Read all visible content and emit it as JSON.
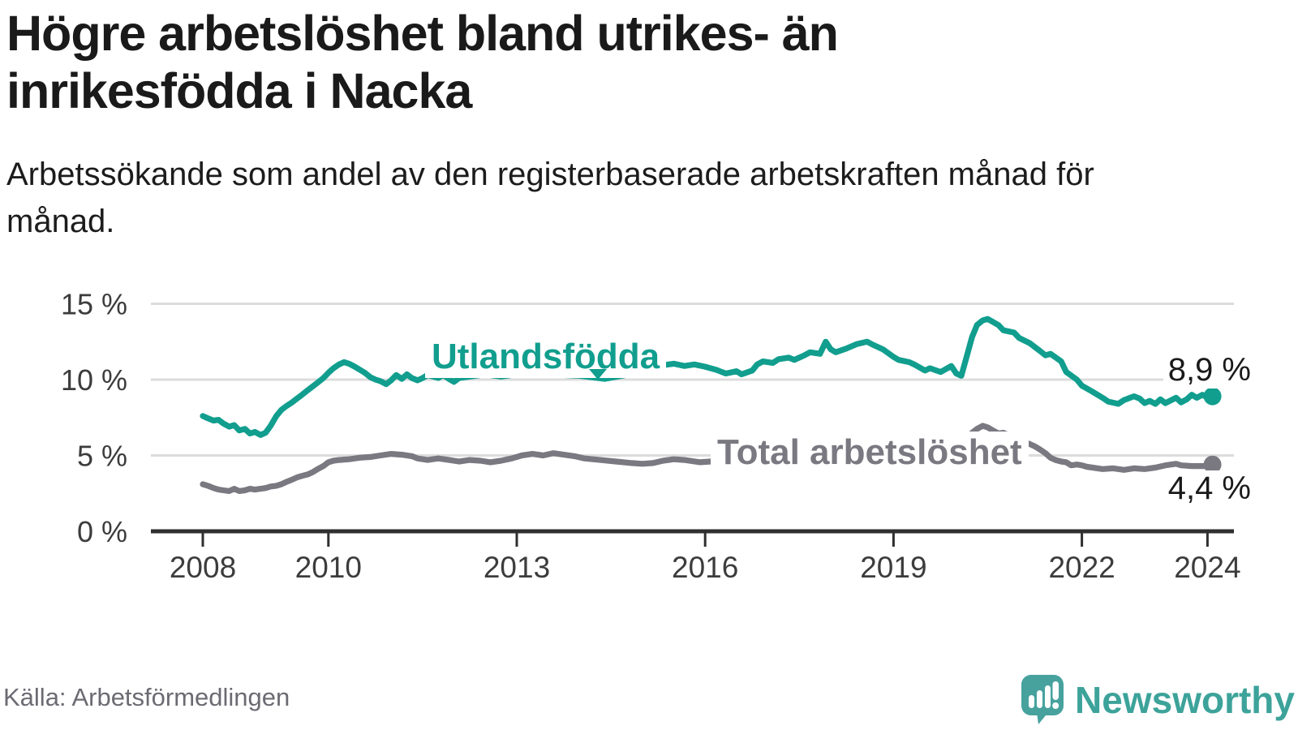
{
  "header": {
    "title": "Högre arbetslöshet bland utrikes- än inrikesfödda i Nacka",
    "subtitle": "Arbetssökande som andel av den registerbaserade arbetskraften månad för månad."
  },
  "chart_data": {
    "type": "line",
    "unit": "percent",
    "grid": "horizontal",
    "x_axis": {
      "ticks": [
        2008,
        2010,
        2013,
        2016,
        2019,
        2022,
        2024
      ],
      "range": [
        2007.2,
        2024.6
      ]
    },
    "y_axis": {
      "ticks": [
        0,
        5,
        10,
        15
      ],
      "tick_labels": [
        "0 %",
        "5 %",
        "10 %",
        "15 %"
      ],
      "range": [
        0,
        16.8
      ]
    },
    "colors": {
      "accent_teal": "#119e8e",
      "neutral_gray": "#7a7880",
      "grid": "#dcdcdc",
      "axis": "#2f2f2f",
      "annotation": "#1a1a1a"
    },
    "series": [
      {
        "name": "Utlandsfödda",
        "label": "Utlandsfödda",
        "color": "#119e8e",
        "end_label": "8,9 %",
        "end_value": 8.9,
        "points": [
          [
            2008.0,
            7.6
          ],
          [
            2008.08,
            7.45
          ],
          [
            2008.17,
            7.3
          ],
          [
            2008.25,
            7.35
          ],
          [
            2008.33,
            7.1
          ],
          [
            2008.42,
            6.9
          ],
          [
            2008.5,
            7.0
          ],
          [
            2008.58,
            6.65
          ],
          [
            2008.67,
            6.75
          ],
          [
            2008.75,
            6.45
          ],
          [
            2008.83,
            6.55
          ],
          [
            2008.92,
            6.35
          ],
          [
            2009.0,
            6.5
          ],
          [
            2009.08,
            6.95
          ],
          [
            2009.17,
            7.6
          ],
          [
            2009.25,
            8.0
          ],
          [
            2009.33,
            8.25
          ],
          [
            2009.42,
            8.5
          ],
          [
            2009.5,
            8.75
          ],
          [
            2009.58,
            9.0
          ],
          [
            2009.67,
            9.3
          ],
          [
            2009.75,
            9.55
          ],
          [
            2009.83,
            9.8
          ],
          [
            2009.92,
            10.1
          ],
          [
            2010.0,
            10.45
          ],
          [
            2010.08,
            10.75
          ],
          [
            2010.17,
            11.0
          ],
          [
            2010.25,
            11.15
          ],
          [
            2010.33,
            11.05
          ],
          [
            2010.42,
            10.85
          ],
          [
            2010.5,
            10.65
          ],
          [
            2010.58,
            10.45
          ],
          [
            2010.67,
            10.15
          ],
          [
            2010.75,
            10.0
          ],
          [
            2010.83,
            9.9
          ],
          [
            2010.92,
            9.7
          ],
          [
            2011.0,
            9.95
          ],
          [
            2011.08,
            10.3
          ],
          [
            2011.17,
            10.05
          ],
          [
            2011.25,
            10.35
          ],
          [
            2011.33,
            10.1
          ],
          [
            2011.42,
            9.95
          ],
          [
            2011.5,
            10.1
          ],
          [
            2011.58,
            10.3
          ],
          [
            2011.67,
            10.2
          ],
          [
            2011.75,
            10.1
          ],
          [
            2011.83,
            10.3
          ],
          [
            2011.92,
            10.05
          ],
          [
            2012.0,
            9.85
          ],
          [
            2012.08,
            10.1
          ],
          [
            2012.25,
            10.2
          ],
          [
            2012.5,
            10.35
          ],
          [
            2012.75,
            10.2
          ],
          [
            2013.0,
            10.35
          ],
          [
            2013.25,
            10.45
          ],
          [
            2013.5,
            10.35
          ],
          [
            2013.75,
            10.3
          ],
          [
            2014.0,
            10.25
          ],
          [
            2014.2,
            10.15
          ],
          [
            2014.4,
            10.05
          ],
          [
            2014.6,
            10.2
          ],
          [
            2014.8,
            10.35
          ],
          [
            2015.0,
            10.6
          ],
          [
            2015.17,
            10.8
          ],
          [
            2015.33,
            10.95
          ],
          [
            2015.5,
            11.05
          ],
          [
            2015.67,
            10.9
          ],
          [
            2015.83,
            11.0
          ],
          [
            2016.0,
            10.85
          ],
          [
            2016.17,
            10.65
          ],
          [
            2016.33,
            10.4
          ],
          [
            2016.5,
            10.55
          ],
          [
            2016.58,
            10.35
          ],
          [
            2016.75,
            10.6
          ],
          [
            2016.83,
            11.0
          ],
          [
            2016.92,
            11.2
          ],
          [
            2017.08,
            11.1
          ],
          [
            2017.17,
            11.35
          ],
          [
            2017.33,
            11.45
          ],
          [
            2017.42,
            11.3
          ],
          [
            2017.58,
            11.6
          ],
          [
            2017.67,
            11.8
          ],
          [
            2017.83,
            11.7
          ],
          [
            2017.92,
            12.5
          ],
          [
            2018.0,
            12.0
          ],
          [
            2018.08,
            11.8
          ],
          [
            2018.25,
            12.05
          ],
          [
            2018.42,
            12.35
          ],
          [
            2018.58,
            12.5
          ],
          [
            2018.67,
            12.3
          ],
          [
            2018.83,
            12.0
          ],
          [
            2019.0,
            11.5
          ],
          [
            2019.08,
            11.3
          ],
          [
            2019.25,
            11.15
          ],
          [
            2019.33,
            11.0
          ],
          [
            2019.5,
            10.6
          ],
          [
            2019.58,
            10.75
          ],
          [
            2019.75,
            10.5
          ],
          [
            2019.92,
            10.9
          ],
          [
            2020.0,
            10.4
          ],
          [
            2020.08,
            10.25
          ],
          [
            2020.17,
            11.6
          ],
          [
            2020.25,
            12.8
          ],
          [
            2020.33,
            13.6
          ],
          [
            2020.42,
            13.9
          ],
          [
            2020.5,
            14.0
          ],
          [
            2020.67,
            13.6
          ],
          [
            2020.75,
            13.25
          ],
          [
            2020.92,
            13.1
          ],
          [
            2021.0,
            12.75
          ],
          [
            2021.17,
            12.4
          ],
          [
            2021.33,
            11.9
          ],
          [
            2021.42,
            11.6
          ],
          [
            2021.5,
            11.7
          ],
          [
            2021.67,
            11.2
          ],
          [
            2021.75,
            10.5
          ],
          [
            2021.92,
            10.0
          ],
          [
            2022.0,
            9.6
          ],
          [
            2022.17,
            9.2
          ],
          [
            2022.33,
            8.8
          ],
          [
            2022.42,
            8.55
          ],
          [
            2022.58,
            8.4
          ],
          [
            2022.67,
            8.65
          ],
          [
            2022.83,
            8.9
          ],
          [
            2022.92,
            8.75
          ],
          [
            2023.0,
            8.45
          ],
          [
            2023.08,
            8.6
          ],
          [
            2023.17,
            8.4
          ],
          [
            2023.25,
            8.7
          ],
          [
            2023.33,
            8.45
          ],
          [
            2023.5,
            8.8
          ],
          [
            2023.58,
            8.5
          ],
          [
            2023.67,
            8.7
          ],
          [
            2023.75,
            9.0
          ],
          [
            2023.83,
            8.8
          ],
          [
            2023.92,
            9.0
          ],
          [
            2024.0,
            8.8
          ],
          [
            2024.08,
            8.9
          ]
        ]
      },
      {
        "name": "Total arbetslöshet",
        "label": "Total arbetslöshet",
        "color": "#7a7880",
        "end_label": "4,4 %",
        "end_value": 4.4,
        "points": [
          [
            2008.0,
            3.1
          ],
          [
            2008.08,
            3.0
          ],
          [
            2008.17,
            2.85
          ],
          [
            2008.25,
            2.75
          ],
          [
            2008.33,
            2.7
          ],
          [
            2008.42,
            2.65
          ],
          [
            2008.5,
            2.8
          ],
          [
            2008.58,
            2.65
          ],
          [
            2008.67,
            2.7
          ],
          [
            2008.75,
            2.8
          ],
          [
            2008.83,
            2.75
          ],
          [
            2008.92,
            2.8
          ],
          [
            2009.0,
            2.85
          ],
          [
            2009.08,
            2.95
          ],
          [
            2009.17,
            3.0
          ],
          [
            2009.25,
            3.1
          ],
          [
            2009.33,
            3.25
          ],
          [
            2009.42,
            3.4
          ],
          [
            2009.5,
            3.55
          ],
          [
            2009.58,
            3.65
          ],
          [
            2009.67,
            3.75
          ],
          [
            2009.75,
            3.9
          ],
          [
            2009.83,
            4.1
          ],
          [
            2009.92,
            4.3
          ],
          [
            2010.0,
            4.55
          ],
          [
            2010.08,
            4.65
          ],
          [
            2010.17,
            4.7
          ],
          [
            2010.33,
            4.75
          ],
          [
            2010.5,
            4.85
          ],
          [
            2010.67,
            4.9
          ],
          [
            2010.83,
            5.0
          ],
          [
            2011.0,
            5.1
          ],
          [
            2011.17,
            5.05
          ],
          [
            2011.33,
            4.95
          ],
          [
            2011.42,
            4.8
          ],
          [
            2011.58,
            4.7
          ],
          [
            2011.75,
            4.8
          ],
          [
            2011.92,
            4.7
          ],
          [
            2012.08,
            4.6
          ],
          [
            2012.25,
            4.7
          ],
          [
            2012.42,
            4.65
          ],
          [
            2012.58,
            4.55
          ],
          [
            2012.75,
            4.65
          ],
          [
            2012.92,
            4.8
          ],
          [
            2013.08,
            5.0
          ],
          [
            2013.25,
            5.1
          ],
          [
            2013.42,
            5.0
          ],
          [
            2013.58,
            5.15
          ],
          [
            2013.75,
            5.05
          ],
          [
            2013.92,
            4.95
          ],
          [
            2014.08,
            4.8
          ],
          [
            2014.33,
            4.7
          ],
          [
            2014.58,
            4.6
          ],
          [
            2014.83,
            4.5
          ],
          [
            2015.0,
            4.45
          ],
          [
            2015.17,
            4.5
          ],
          [
            2015.33,
            4.65
          ],
          [
            2015.5,
            4.75
          ],
          [
            2015.67,
            4.7
          ],
          [
            2015.92,
            4.55
          ],
          [
            2016.08,
            4.6
          ],
          [
            2016.33,
            4.55
          ],
          [
            2016.58,
            4.5
          ],
          [
            2016.83,
            4.45
          ],
          [
            2017.08,
            4.45
          ],
          [
            2017.33,
            4.4
          ],
          [
            2017.58,
            4.35
          ],
          [
            2017.83,
            4.35
          ],
          [
            2018.08,
            4.35
          ],
          [
            2018.33,
            4.35
          ],
          [
            2018.58,
            4.4
          ],
          [
            2018.83,
            4.4
          ],
          [
            2019.08,
            4.45
          ],
          [
            2019.33,
            4.55
          ],
          [
            2019.58,
            4.7
          ],
          [
            2019.83,
            4.8
          ],
          [
            2020.0,
            4.9
          ],
          [
            2020.08,
            5.2
          ],
          [
            2020.17,
            5.9
          ],
          [
            2020.25,
            6.5
          ],
          [
            2020.33,
            6.75
          ],
          [
            2020.42,
            6.95
          ],
          [
            2020.5,
            6.85
          ],
          [
            2020.58,
            6.65
          ],
          [
            2020.67,
            6.45
          ],
          [
            2020.75,
            6.5
          ],
          [
            2020.83,
            6.35
          ],
          [
            2020.92,
            6.25
          ],
          [
            2021.0,
            6.15
          ],
          [
            2021.08,
            5.9
          ],
          [
            2021.17,
            5.75
          ],
          [
            2021.25,
            5.6
          ],
          [
            2021.33,
            5.4
          ],
          [
            2021.42,
            5.15
          ],
          [
            2021.5,
            4.85
          ],
          [
            2021.58,
            4.7
          ],
          [
            2021.67,
            4.6
          ],
          [
            2021.75,
            4.55
          ],
          [
            2021.83,
            4.35
          ],
          [
            2021.92,
            4.4
          ],
          [
            2022.0,
            4.35
          ],
          [
            2022.08,
            4.25
          ],
          [
            2022.17,
            4.2
          ],
          [
            2022.33,
            4.1
          ],
          [
            2022.5,
            4.15
          ],
          [
            2022.67,
            4.05
          ],
          [
            2022.83,
            4.15
          ],
          [
            2023.0,
            4.1
          ],
          [
            2023.17,
            4.2
          ],
          [
            2023.33,
            4.35
          ],
          [
            2023.5,
            4.45
          ],
          [
            2023.58,
            4.35
          ],
          [
            2023.75,
            4.3
          ],
          [
            2023.92,
            4.3
          ],
          [
            2024.0,
            4.3
          ],
          [
            2024.08,
            4.4
          ]
        ]
      }
    ]
  },
  "footer": {
    "source": "Källa: Arbetsförmedlingen",
    "brand": "Newsworthy",
    "brand_color": "#3da39a",
    "logo_bubble_color": "#47a29e"
  }
}
